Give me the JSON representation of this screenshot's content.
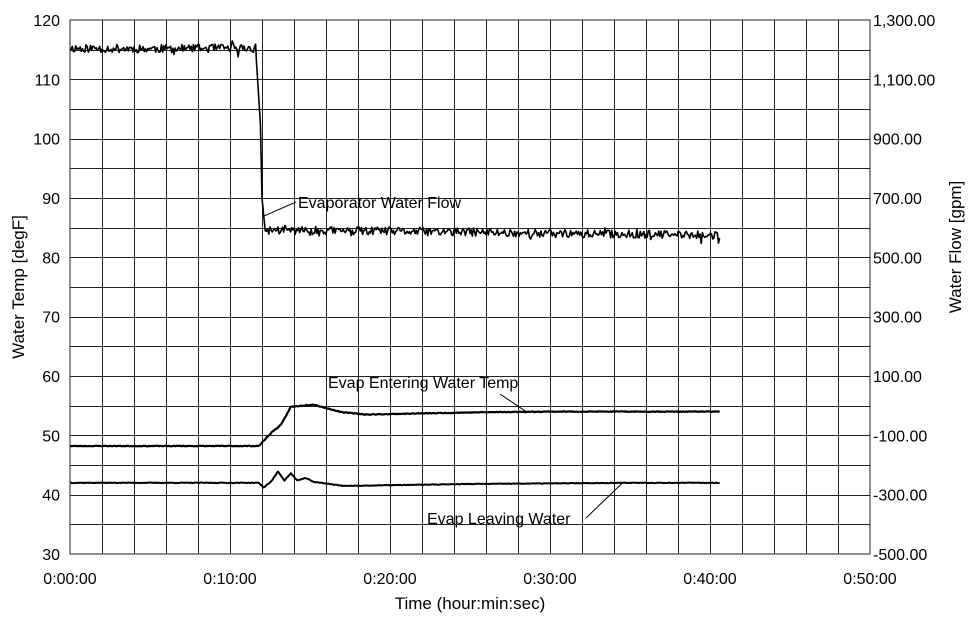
{
  "chart_data": {
    "type": "line",
    "xlabel": "Time (hour:min:sec)",
    "ylabel_left": "Water Temp [degF]",
    "ylabel_right": "Water Flow [gpm]",
    "x_unit": "minutes",
    "xlim": [
      0,
      50
    ],
    "ylim_left": [
      30,
      120
    ],
    "ylim_right": [
      -500,
      1300
    ],
    "x_tick_values": [
      0,
      10,
      20,
      30,
      40,
      50
    ],
    "x_tick_labels": [
      "0:00:00",
      "0:10:00",
      "0:20:00",
      "0:30:00",
      "0:40:00",
      "0:50:00"
    ],
    "y_left_ticks": [
      30,
      40,
      50,
      60,
      70,
      80,
      90,
      100,
      110,
      120
    ],
    "y_left_tick_labels": [
      "30",
      "40",
      "50",
      "60",
      "70",
      "80",
      "90",
      "100",
      "110",
      "120"
    ],
    "y_right_ticks": [
      -500,
      -300,
      -100,
      100,
      300,
      500,
      700,
      900,
      1100,
      1300
    ],
    "y_right_tick_labels": [
      "-500.00",
      "-300.00",
      "-100.00",
      "100.00",
      "300.00",
      "500.00",
      "700.00",
      "900.00",
      "1,100.00",
      "1,300.00"
    ],
    "grid": true,
    "grid_x_step": 2,
    "grid_y_step": 5,
    "series": [
      {
        "axis": "right",
        "x": [
          0,
          5,
          10,
          11.6,
          11.9,
          12.0,
          12.2,
          12.5,
          15,
          20,
          25,
          30,
          35,
          40.6
        ],
        "y": [
          1205,
          1203,
          1205,
          1205,
          950,
          700,
          590,
          592,
          590,
          588,
          585,
          580,
          578,
          574
        ]
      },
      {
        "axis": "left",
        "x": [
          0,
          5,
          11.8,
          12.6,
          13.2,
          13.8,
          14.5,
          15.2,
          16.0,
          17.0,
          18.5,
          22,
          26,
          30,
          35,
          40.6
        ],
        "y": [
          48.2,
          48.2,
          48.2,
          50.5,
          51.8,
          54.8,
          55.0,
          55.2,
          54.6,
          53.9,
          53.5,
          53.7,
          53.9,
          54.0,
          54.0,
          54.0
        ]
      },
      {
        "axis": "left",
        "x": [
          0,
          6,
          11.8,
          12.1,
          12.6,
          13.0,
          13.4,
          13.8,
          14.2,
          14.7,
          15.3,
          16.0,
          17.0,
          18.0,
          20,
          25,
          30,
          35,
          40.6
        ],
        "y": [
          42.0,
          42.0,
          42.0,
          41.2,
          42.3,
          43.9,
          42.4,
          43.6,
          42.4,
          42.8,
          42.1,
          41.9,
          41.5,
          41.5,
          41.6,
          41.8,
          41.9,
          42.0,
          42.0
        ]
      }
    ],
    "annotations": [
      {
        "text": "Evaporator Water Flow",
        "series": 0,
        "x": 12.15,
        "y_axis_value": 640
      },
      {
        "text": "Evap Entering Water Temp",
        "series": 1,
        "x": 28.5,
        "y_axis_value": 54.0
      },
      {
        "text": "Evap Leaving Water",
        "series": 2,
        "x": 34.5,
        "y_axis_value": 41.9
      }
    ]
  }
}
